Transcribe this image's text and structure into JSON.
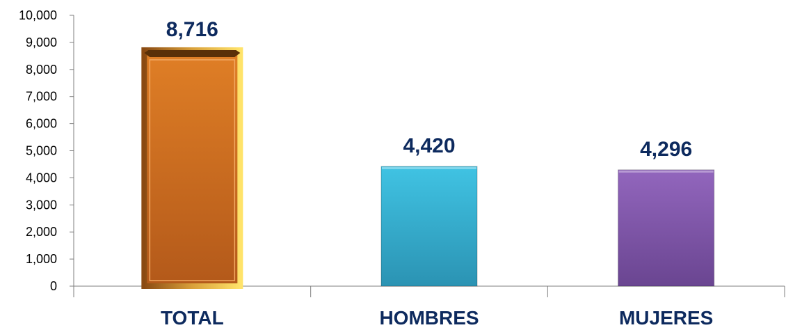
{
  "chart_data": {
    "type": "bar",
    "categories": [
      "TOTAL",
      "HOMBRES",
      "MUJERES"
    ],
    "values": [
      8716,
      4420,
      4296
    ],
    "value_labels": [
      "8,716",
      "4,420",
      "4,296"
    ],
    "ylim": [
      0,
      10000
    ],
    "yticks": [
      0,
      1000,
      2000,
      3000,
      4000,
      5000,
      6000,
      7000,
      8000,
      9000,
      10000
    ],
    "ytick_labels": [
      "0",
      "1,000",
      "2,000",
      "3,000",
      "4,000",
      "5,000",
      "6,000",
      "7,000",
      "8,000",
      "9,000",
      "10,000"
    ],
    "grid": false,
    "legend": "none",
    "bar_colors": [
      "#d8741f",
      "#33b5d6",
      "#8a5cb0"
    ],
    "label_color": "#0d2a5e"
  }
}
